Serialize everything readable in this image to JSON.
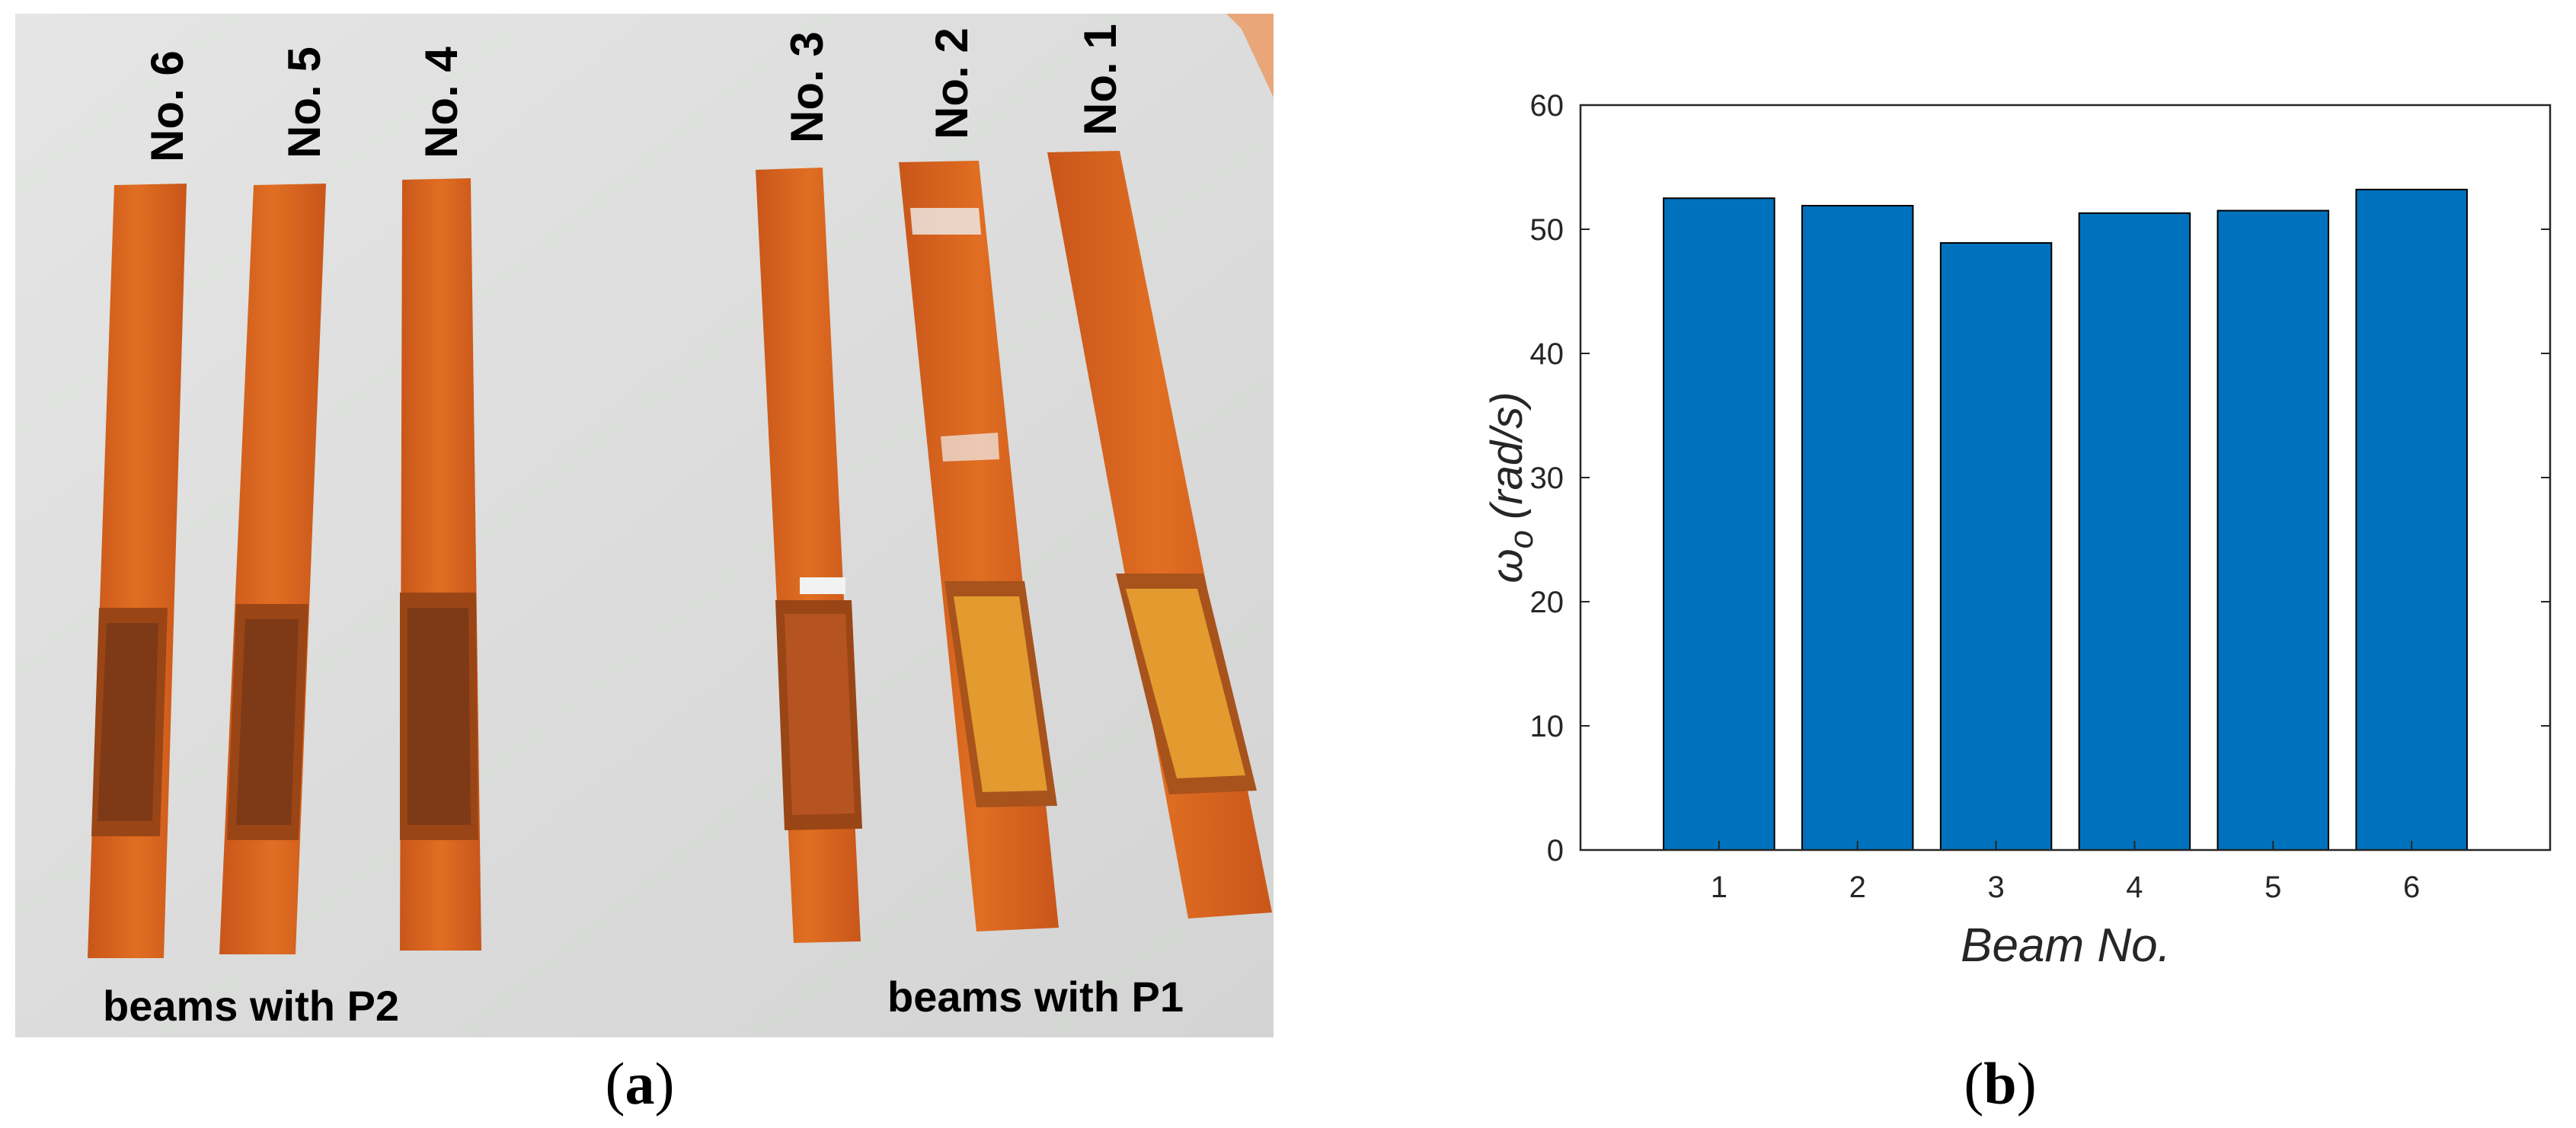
{
  "figure": {
    "panel_a": {
      "caption_open": "(",
      "caption_letter": "a",
      "caption_close": ")",
      "beam_labels": [
        "No. 6",
        "No. 5",
        "No. 4",
        "No. 3",
        "No. 2",
        "No. 1"
      ],
      "group_left_label": "beams with P2",
      "group_right_label": "beams with P1"
    },
    "panel_b": {
      "caption_open": "(",
      "caption_letter": "b",
      "caption_close": ")"
    }
  },
  "colors": {
    "bar_fill": "#0072BD",
    "background_photo": "#DCDDDC",
    "beam_orange": "#D9651C",
    "patch_dark": "#8C3F18",
    "patch_light": "#E39A2E"
  },
  "chart_data": {
    "type": "bar",
    "categories": [
      "1",
      "2",
      "3",
      "4",
      "5",
      "6"
    ],
    "values": [
      52.5,
      51.9,
      48.9,
      51.3,
      51.5,
      53.2
    ],
    "xlabel": "Beam No.",
    "ylabel_symbol": "ω",
    "ylabel_subscript": "o",
    "ylabel_units": "(rad/s)",
    "ylim": [
      0,
      60
    ],
    "yticks": [
      "0",
      "10",
      "20",
      "30",
      "40",
      "50",
      "60"
    ],
    "grid": false
  }
}
